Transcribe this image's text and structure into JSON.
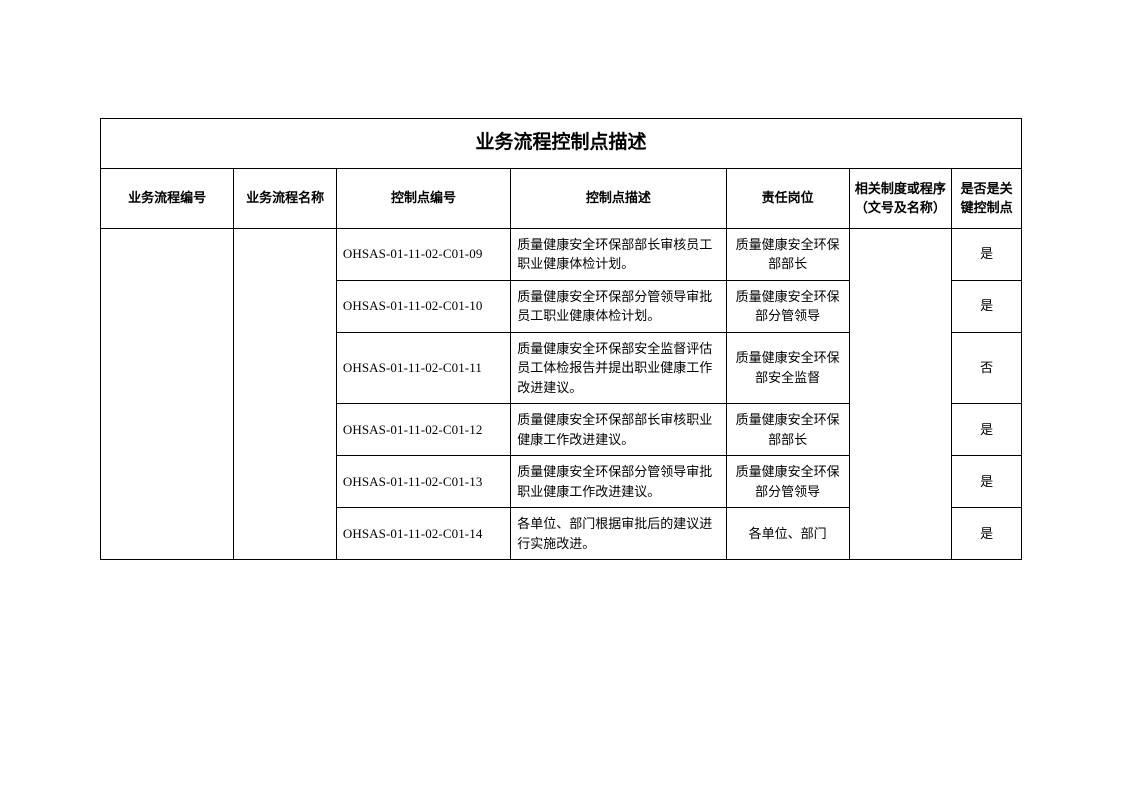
{
  "title": "业务流程控制点描述",
  "columns": [
    "业务流程编号",
    "业务流程名称",
    "控制点编号",
    "控制点描述",
    "责任岗位",
    "相关制度或程序（文号及名称）",
    "是否是关键控制点"
  ],
  "rows": [
    {
      "code": "OHSAS-01-11-02-C01-09",
      "desc": "质量健康安全环保部部长审核员工职业健康体检计划。",
      "role": "质量健康安全环保部部长",
      "key": "是"
    },
    {
      "code": "OHSAS-01-11-02-C01-10",
      "desc": "质量健康安全环保部分管领导审批员工职业健康体检计划。",
      "role": "质量健康安全环保部分管领导",
      "key": "是"
    },
    {
      "code": "OHSAS-01-11-02-C01-11",
      "desc": "质量健康安全环保部安全监督评估员工体检报告并提出职业健康工作改进建议。",
      "role": "质量健康安全环保部安全监督",
      "key": "否"
    },
    {
      "code": "OHSAS-01-11-02-C01-12",
      "desc": "质量健康安全环保部部长审核职业健康工作改进建议。",
      "role": "质量健康安全环保部部长",
      "key": "是"
    },
    {
      "code": "OHSAS-01-11-02-C01-13",
      "desc": "质量健康安全环保部分管领导审批职业健康工作改进建议。",
      "role": "质量健康安全环保部分管领导",
      "key": "是"
    },
    {
      "code": "OHSAS-01-11-02-C01-14",
      "desc": "各单位、部门根据审批后的建议进行实施改进。",
      "role": "各单位、部门",
      "key": "是"
    }
  ],
  "style": {
    "border_color": "#000000",
    "background_color": "#ffffff",
    "title_fontsize": 19,
    "header_fontsize": 13,
    "cell_fontsize": 13
  }
}
